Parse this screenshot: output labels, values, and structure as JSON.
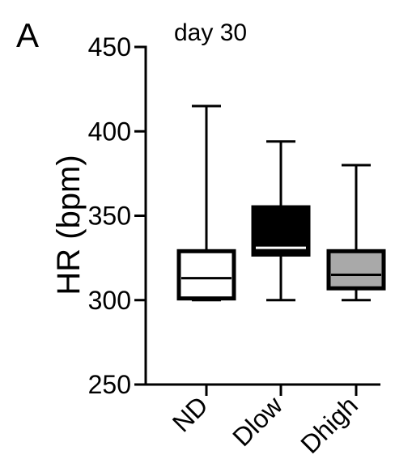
{
  "panel_label": "A",
  "chart_data": {
    "type": "box",
    "title": "day 30",
    "xlabel": "",
    "ylabel": "HR (bpm)",
    "ylim": [
      250,
      450
    ],
    "yticks": [
      250,
      300,
      350,
      400,
      450
    ],
    "grid": false,
    "legend": "none",
    "categories": [
      "ND",
      "Dlow",
      "Dhigh"
    ],
    "boxes": [
      {
        "category": "ND",
        "min": 300,
        "q1": 301,
        "median": 313,
        "q3": 329,
        "max": 415,
        "fill": "#ffffff"
      },
      {
        "category": "Dlow",
        "min": 300,
        "q1": 327,
        "median": 331,
        "q3": 355,
        "max": 394,
        "fill": "#000000"
      },
      {
        "category": "Dhigh",
        "min": 300,
        "q1": 307,
        "median": 315,
        "q3": 329,
        "max": 380,
        "fill": "#a9a9a9"
      }
    ]
  }
}
